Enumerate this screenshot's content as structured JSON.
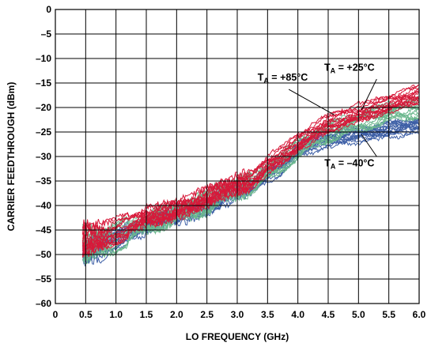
{
  "chart_data": {
    "type": "line",
    "xlabel": "LO FREQUENCY (GHz)",
    "ylabel": "CARRIER FEEDTHROUGH (dBm)",
    "xlim": [
      0,
      6.0
    ],
    "ylim": [
      -60,
      0
    ],
    "x_ticks": [
      "0",
      "0.5",
      "1.0",
      "1.5",
      "2.0",
      "2.5",
      "3.0",
      "3.5",
      "4.0",
      "4.5",
      "5.0",
      "5.5",
      "6.0"
    ],
    "y_ticks": [
      "0",
      "–5",
      "–10",
      "–15",
      "–20",
      "–25",
      "–30",
      "–35",
      "–40",
      "–45",
      "–50",
      "–55",
      "–60"
    ],
    "grid": true,
    "series": [
      {
        "name": "TA = +85°C",
        "color": "#d7193a",
        "x": [
          0.45,
          0.75,
          1.0,
          1.25,
          1.5,
          1.75,
          2.0,
          2.25,
          2.5,
          2.75,
          3.0,
          3.25,
          3.5,
          3.75,
          4.0,
          4.25,
          4.5,
          4.75,
          5.0,
          5.25,
          5.5,
          5.75,
          6.0
        ],
        "y": [
          -46.5,
          -46.0,
          -45.0,
          -43.5,
          -42.0,
          -41.5,
          -40.5,
          -39.5,
          -38.0,
          -36.5,
          -35.5,
          -34.5,
          -31.5,
          -29.5,
          -27.0,
          -25.0,
          -23.0,
          -22.0,
          -21.0,
          -20.0,
          -19.0,
          -18.0,
          -17.0
        ]
      },
      {
        "name": "TA = +25°C",
        "color": "#6cb88e",
        "x": [
          0.45,
          0.75,
          1.0,
          1.25,
          1.5,
          1.75,
          2.0,
          2.25,
          2.5,
          2.75,
          3.0,
          3.25,
          3.5,
          3.75,
          4.0,
          4.25,
          4.5,
          4.75,
          5.0,
          5.25,
          5.5,
          5.75,
          6.0
        ],
        "y": [
          -48.0,
          -47.5,
          -46.5,
          -45.0,
          -43.5,
          -42.5,
          -41.5,
          -40.5,
          -39.5,
          -37.5,
          -36.5,
          -35.5,
          -33.0,
          -31.0,
          -28.5,
          -26.5,
          -25.0,
          -24.0,
          -23.0,
          -22.0,
          -21.0,
          -20.5,
          -20.0
        ]
      },
      {
        "name": "TA = –40°C",
        "color": "#3d5fa6",
        "x": [
          0.45,
          0.75,
          1.0,
          1.25,
          1.5,
          1.75,
          2.0,
          2.25,
          2.5,
          2.75,
          3.0,
          3.25,
          3.5,
          3.75,
          4.0,
          4.25,
          4.5,
          4.75,
          5.0,
          5.25,
          5.5,
          5.75,
          6.0
        ],
        "y": [
          -50.0,
          -49.0,
          -47.5,
          -46.0,
          -44.5,
          -43.0,
          -42.5,
          -41.5,
          -41.0,
          -39.0,
          -37.5,
          -36.5,
          -34.0,
          -32.5,
          -29.0,
          -28.0,
          -27.0,
          -26.5,
          -26.0,
          -25.5,
          -25.0,
          -24.5,
          -24.0
        ]
      }
    ],
    "annotations": [
      {
        "main": "T",
        "sub": "A",
        "rest": " = +85°C",
        "x": 3.75,
        "y": -14.5
      },
      {
        "main": "T",
        "sub": "A",
        "rest": " = +25°C",
        "x": 4.85,
        "y": -12.5
      },
      {
        "main": "T",
        "sub": "A",
        "rest": " = –40°C",
        "x": 4.85,
        "y": -32.0
      }
    ]
  }
}
